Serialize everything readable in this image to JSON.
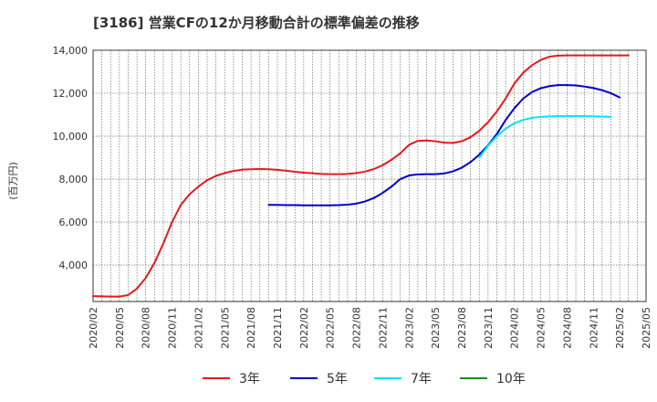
{
  "chart_data": {
    "type": "line",
    "title": "[3186]  営業CFの12か月移動合計の標準偏差の推移",
    "ylabel": "(百万円)",
    "xlabel": "",
    "ylim": [
      2300,
      14000
    ],
    "y_ticks": [
      4000,
      6000,
      8000,
      10000,
      12000,
      14000
    ],
    "y_tick_labels": [
      "4,000",
      "6,000",
      "8,000",
      "10,000",
      "12,000",
      "14,000"
    ],
    "x_tick_labels": [
      "2020/02",
      "2020/05",
      "2020/08",
      "2020/11",
      "2021/02",
      "2021/05",
      "2021/08",
      "2021/11",
      "2022/02",
      "2022/05",
      "2022/08",
      "2022/11",
      "2023/02",
      "2023/05",
      "2023/08",
      "2023/11",
      "2024/02",
      "2024/05",
      "2024/08",
      "2024/11",
      "2025/02",
      "2025/05"
    ],
    "x_start": "2020/02",
    "grid": true,
    "legend_position": "bottom",
    "series": [
      {
        "name": "3年",
        "color": "#e31a1c",
        "start": "2020/02",
        "values": [
          2550,
          2540,
          2530,
          2530,
          2600,
          2900,
          3400,
          4100,
          5000,
          6000,
          6800,
          7300,
          7650,
          7950,
          8150,
          8280,
          8380,
          8440,
          8460,
          8470,
          8460,
          8430,
          8390,
          8340,
          8300,
          8270,
          8240,
          8230,
          8230,
          8240,
          8280,
          8350,
          8470,
          8650,
          8900,
          9200,
          9600,
          9780,
          9800,
          9760,
          9700,
          9680,
          9760,
          9950,
          10250,
          10650,
          11150,
          11750,
          12450,
          12950,
          13300,
          13550,
          13700,
          13750,
          13760,
          13760,
          13760,
          13760,
          13760,
          13760,
          13760,
          13760
        ]
      },
      {
        "name": "5年",
        "color": "#0000cc",
        "start": "2021/10",
        "values": [
          6800,
          6800,
          6790,
          6790,
          6780,
          6780,
          6780,
          6780,
          6790,
          6810,
          6860,
          6960,
          7120,
          7360,
          7650,
          8000,
          8170,
          8220,
          8230,
          8230,
          8260,
          8360,
          8530,
          8790,
          9140,
          9570,
          10100,
          10750,
          11300,
          11750,
          12050,
          12230,
          12330,
          12380,
          12380,
          12360,
          12310,
          12240,
          12140,
          12000,
          11800
        ]
      },
      {
        "name": "7年",
        "color": "#00e5ee",
        "start": "2023/10",
        "values": [
          9000,
          9550,
          10000,
          10350,
          10600,
          10760,
          10850,
          10900,
          10920,
          10930,
          10930,
          10930,
          10930,
          10920,
          10910,
          10900
        ]
      },
      {
        "name": "10年",
        "color": "#228b22",
        "start": "2024/11",
        "values": []
      }
    ]
  }
}
